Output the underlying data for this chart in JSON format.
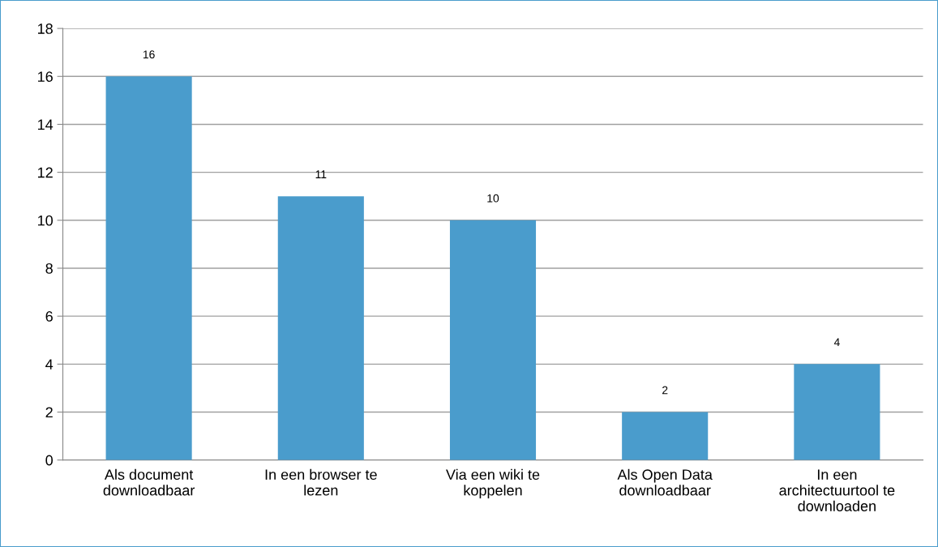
{
  "chart_data": {
    "type": "bar",
    "categories": [
      "Als document\ndownloadbaar",
      "In een browser te\nlezen",
      "Via een wiki te\nkoppelen",
      "Als Open Data\ndownloadbaar",
      "In een\narchitectuurtool te\ndownloaden"
    ],
    "values": [
      16,
      11,
      10,
      2,
      4
    ],
    "color": "#4a9ccc",
    "ylim": [
      0,
      18
    ],
    "yticks": [
      0,
      2,
      4,
      6,
      8,
      10,
      12,
      14,
      16,
      18
    ],
    "grid": "y",
    "data_labels": true
  }
}
